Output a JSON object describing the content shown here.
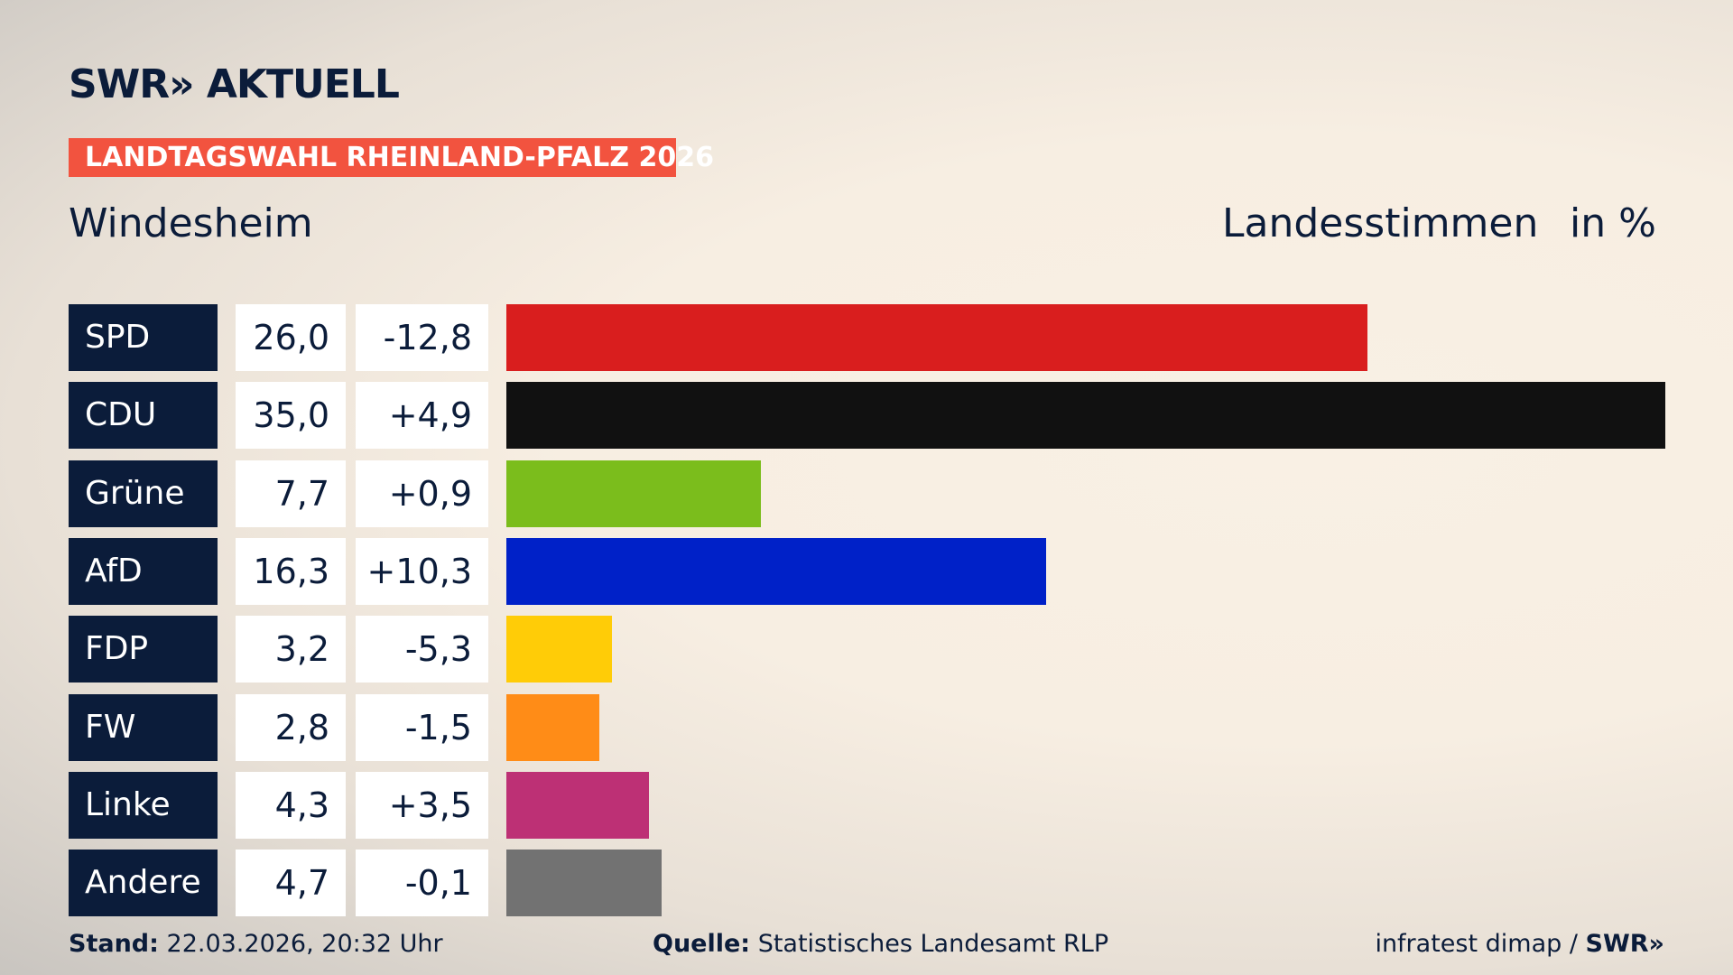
{
  "brand": {
    "logo": "SWR» AKTUELL",
    "banner": "LANDTAGSWAHL RHEINLAND-PFALZ 2026"
  },
  "chart_data": {
    "type": "bar",
    "title": "Windesheim",
    "metric": "Landesstimmen",
    "unit": "in %",
    "categories": [
      "SPD",
      "CDU",
      "Grüne",
      "AfD",
      "FDP",
      "FW",
      "Linke",
      "Andere"
    ],
    "values": [
      26.0,
      35.0,
      7.7,
      16.3,
      3.2,
      2.8,
      4.3,
      4.7
    ],
    "value_labels": [
      "26,0",
      "35,0",
      "7,7",
      "16,3",
      "3,2",
      "2,8",
      "4,3",
      "4,7"
    ],
    "diff_labels": [
      "-12,8",
      "+4,9",
      "+0,9",
      "+10,3",
      "-5,3",
      "-1,5",
      "+3,5",
      "-0,1"
    ],
    "colors": [
      "#d91e1e",
      "#111111",
      "#7bbd1c",
      "#0021c8",
      "#ffcc07",
      "#ff8c17",
      "#bd3075",
      "#727272"
    ],
    "xlim": [
      0,
      35
    ]
  },
  "footer": {
    "stand_label": "Stand:",
    "stand": "22.03.2026, 20:32 Uhr",
    "source_label": "Quelle:",
    "source": "Statistisches Landesamt RLP",
    "credit": "infratest dimap / ",
    "credit_logo": "SWR»"
  }
}
